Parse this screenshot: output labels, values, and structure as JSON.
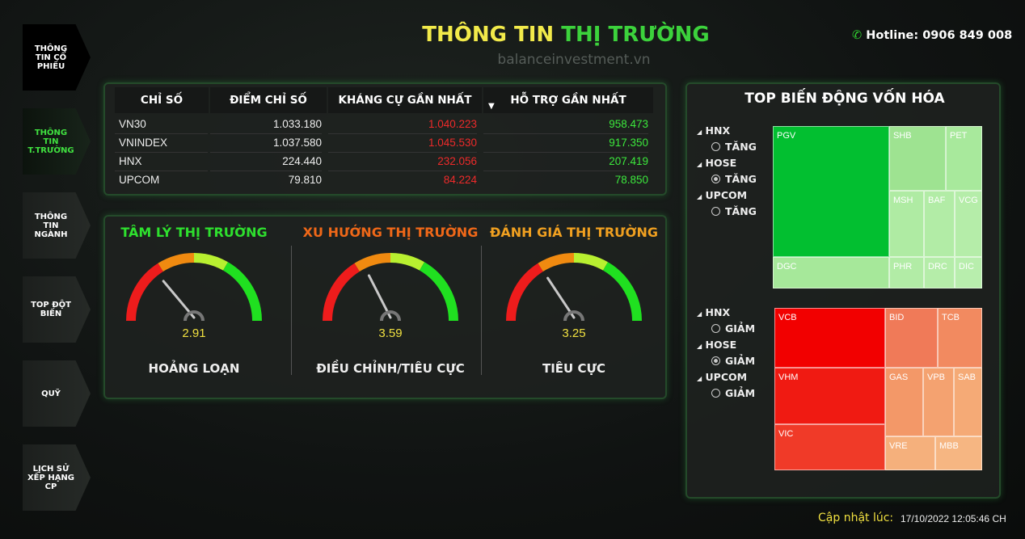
{
  "header": {
    "title_part1": "THÔNG TIN",
    "title_part2": "THỊ TRƯỜNG",
    "watermark": "balanceinvestment.vn",
    "hotline": "Hotline: 0906 849 008"
  },
  "sidebar": [
    "THÔNG TIN CỔ PHIẾU",
    "THÔNG TIN T.TRƯỜNG",
    "THÔNG TIN NGÀNH",
    "TOP ĐỘT BIẾN",
    "QUỸ",
    "LỊCH SỬ XẾP HẠNG CP"
  ],
  "table": {
    "columns": [
      "CHỈ SỐ",
      "ĐIỂM CHỈ SỐ",
      "KHÁNG CỰ GẦN NHẤT",
      "HỖ TRỢ GẦN NHẤT"
    ],
    "rows": [
      [
        "VN30",
        "1.033.180",
        "1.040.223",
        "958.473"
      ],
      [
        "VNINDEX",
        "1.037.580",
        "1.045.530",
        "917.350"
      ],
      [
        "HNX",
        "224.440",
        "232.056",
        "207.419"
      ],
      [
        "UPCOM",
        "79.810",
        "84.224",
        "78.850"
      ]
    ]
  },
  "gauges": [
    {
      "title": "TÂM LÝ THỊ TRƯỜNG",
      "value": 2.91,
      "label": "HOẢNG LOẠN",
      "range": [
        0,
        10
      ]
    },
    {
      "title": "XU HƯỚNG THỊ TRƯỜNG",
      "value": 3.59,
      "label": "ĐIỀU CHỈNH/TIÊU CỰC",
      "range": [
        0,
        10
      ]
    },
    {
      "title": "ĐÁNH GIÁ THỊ TRƯỜNG",
      "value": 3.25,
      "label": "TIÊU CỰC",
      "range": [
        0,
        10
      ]
    }
  ],
  "treemap": {
    "title": "TOP BIẾN ĐỘNG VỐN HÓA",
    "up": {
      "filters": [
        {
          "exchange": "HNX",
          "option": "TĂNG"
        },
        {
          "exchange": "HOSE",
          "option": "TĂNG"
        },
        {
          "exchange": "UPCOM",
          "option": "TĂNG"
        }
      ],
      "tiles": [
        "PGV",
        "DGC",
        "SHB",
        "PET",
        "MSH",
        "BAF",
        "VCG",
        "PHR",
        "DRC",
        "DIC"
      ]
    },
    "down": {
      "filters": [
        {
          "exchange": "HNX",
          "option": "GIẢM"
        },
        {
          "exchange": "HOSE",
          "option": "GIẢM"
        },
        {
          "exchange": "UPCOM",
          "option": "GIẢM"
        }
      ],
      "tiles": [
        "VCB",
        "VHM",
        "VIC",
        "BID",
        "TCB",
        "GAS",
        "VPB",
        "SAB",
        "VRE",
        "MBB"
      ]
    }
  },
  "footer": {
    "label": "Cập nhật lúc:",
    "time": "17/10/2022 12:05:46 CH"
  }
}
